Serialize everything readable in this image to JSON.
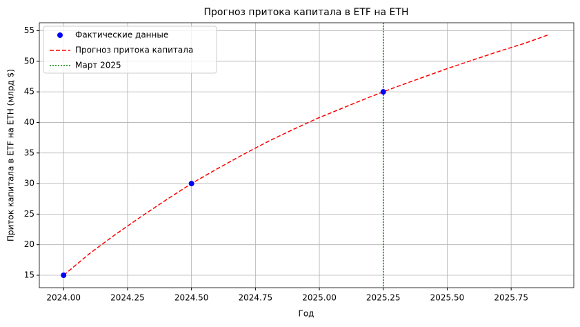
{
  "chart_data": {
    "type": "line",
    "title": "Прогноз притока капитала в ETF на ETH",
    "xlabel": "Год",
    "ylabel": "Приток капитала в ETF на ETH (млрд $)",
    "series": [
      {
        "name": "Фактические данные",
        "type": "scatter",
        "color": "#0000ff",
        "x": [
          2024,
          2024.5,
          2025.25
        ],
        "values": [
          15,
          30,
          45
        ]
      },
      {
        "name": "Прогноз притока капитала",
        "type": "line",
        "style": "dashed",
        "color": "#ff0000",
        "x": [
          2024.0,
          2024.1,
          2024.2,
          2024.3,
          2024.4,
          2024.5,
          2024.6,
          2024.7,
          2024.8,
          2024.9,
          2025.0,
          2025.1,
          2025.2,
          2025.25,
          2025.3,
          2025.4,
          2025.5,
          2025.6,
          2025.7,
          2025.8,
          2025.9
        ],
        "values": [
          15,
          18.5,
          21.6,
          24.5,
          27.3,
          30,
          32.4,
          34.7,
          36.9,
          38.9,
          40.8,
          42.5,
          44.2,
          45,
          45.8,
          47.3,
          48.8,
          50.2,
          51.6,
          52.9,
          54.4
        ]
      },
      {
        "name": "Март 2025",
        "type": "vline",
        "style": "dotted",
        "color": "#008000",
        "x": [
          2025.25
        ]
      }
    ],
    "xlim": [
      2023.905,
      2025.995
    ],
    "ylim": [
      12.97,
      56.3
    ],
    "xticks": [
      {
        "value": 2024,
        "label": "2024.00"
      },
      {
        "value": 2024.25,
        "label": "2024.25"
      },
      {
        "value": 2024.5,
        "label": "2024.50"
      },
      {
        "value": 2024.75,
        "label": "2024.75"
      },
      {
        "value": 2025,
        "label": "2025.00"
      },
      {
        "value": 2025.25,
        "label": "2025.25"
      },
      {
        "value": 2025.5,
        "label": "2025.50"
      },
      {
        "value": 2025.75,
        "label": "2025.75"
      }
    ],
    "yticks": [
      15,
      20,
      25,
      30,
      35,
      40,
      45,
      50,
      55
    ],
    "grid": true,
    "legend": "upper-left"
  }
}
